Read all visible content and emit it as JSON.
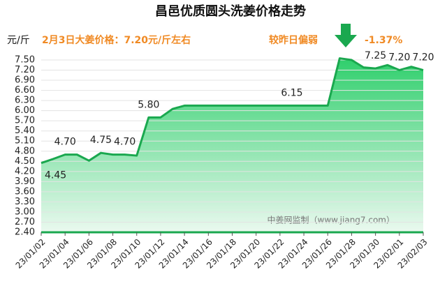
{
  "chart_data": {
    "type": "area",
    "title": "昌邑优质圆头洗姜价格走势",
    "y_label": "元/斤",
    "annotations": [
      "2月3日大姜价格：7.20元/斤左右",
      "较昨日偏弱",
      "-1.37%",
      "中姜网监制（www.jiang7.com）"
    ],
    "categories": [
      "23/01/02",
      null,
      "23/01/04",
      null,
      "23/01/06",
      null,
      "23/01/08",
      null,
      "23/01/10",
      null,
      "23/01/12",
      null,
      "23/01/14",
      null,
      "23/01/16",
      null,
      "23/01/18",
      null,
      "23/01/20",
      null,
      "23/01/22",
      null,
      "23/01/24",
      null,
      "23/01/26",
      null,
      "23/01/28",
      null,
      "23/01/30",
      null,
      "23/02/01",
      null,
      "23/02/03"
    ],
    "values": [
      4.45,
      4.57,
      4.7,
      4.7,
      4.52,
      4.75,
      4.7,
      4.7,
      4.67,
      5.8,
      5.8,
      6.05,
      6.15,
      6.15,
      6.15,
      6.15,
      6.15,
      6.15,
      6.15,
      6.15,
      6.15,
      6.15,
      6.15,
      6.15,
      6.15,
      7.55,
      7.5,
      7.28,
      7.25,
      7.35,
      7.2,
      7.3,
      7.2
    ],
    "value_labels": [
      "4.45",
      null,
      "4.70",
      null,
      null,
      "4.75",
      null,
      "4.70",
      null,
      "5.80",
      null,
      null,
      null,
      null,
      null,
      null,
      null,
      null,
      null,
      null,
      null,
      "6.15",
      null,
      null,
      null,
      null,
      null,
      null,
      "7.25",
      null,
      "7.20",
      null,
      "7.20"
    ],
    "color": "#1aa84f",
    "ylim": [
      2.4,
      7.5
    ],
    "yticks": [
      {
        "value": 2.4,
        "label": "2.40"
      },
      {
        "value": 2.7,
        "label": "2.70"
      },
      {
        "value": 3.0,
        "label": "3.00"
      },
      {
        "value": 3.3,
        "label": "3.30"
      },
      {
        "value": 3.6,
        "label": "3.60"
      },
      {
        "value": 3.9,
        "label": "3.90"
      },
      {
        "value": 4.2,
        "label": "4.20"
      },
      {
        "value": 4.5,
        "label": "4.50"
      },
      {
        "value": 4.8,
        "label": "4.80"
      },
      {
        "value": 5.1,
        "label": "5.10"
      },
      {
        "value": 5.4,
        "label": "5.40"
      },
      {
        "value": 5.7,
        "label": "5.70"
      },
      {
        "value": 6.0,
        "label": "6.00"
      },
      {
        "value": 6.3,
        "label": "6.30"
      },
      {
        "value": 6.6,
        "label": "6.60"
      },
      {
        "value": 6.9,
        "label": "6.90"
      },
      {
        "value": 7.2,
        "label": "7.20"
      },
      {
        "value": 7.5,
        "label": "7.50"
      }
    ],
    "grid": true
  }
}
